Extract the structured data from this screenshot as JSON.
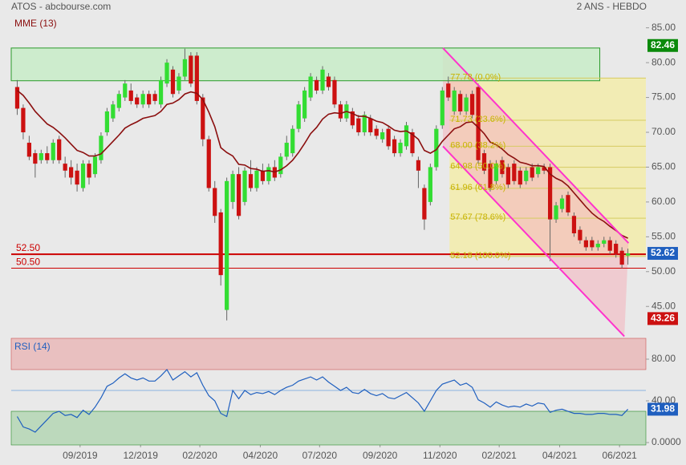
{
  "chart_data": {
    "type": "candlestick",
    "title": "ATOS - abcbourse.com",
    "subtitle": "2 ANS - HEBDO",
    "xlim": [
      -1,
      105
    ],
    "xticks": [
      {
        "value": 10.5,
        "label": "09/2019"
      },
      {
        "value": 20.6,
        "label": "12/2019"
      },
      {
        "value": 30.5,
        "label": "02/2020"
      },
      {
        "value": 40.6,
        "label": "04/2020"
      },
      {
        "value": 50.5,
        "label": "07/2020"
      },
      {
        "value": 60.6,
        "label": "09/2020"
      },
      {
        "value": 70.6,
        "label": "11/2020"
      },
      {
        "value": 80.5,
        "label": "02/2021"
      },
      {
        "value": 90.6,
        "label": "04/2021"
      },
      {
        "value": 100.6,
        "label": "06/2021"
      }
    ],
    "ylim": [
      41,
      86
    ],
    "yticks": [
      {
        "value": 85,
        "label": "85.00"
      },
      {
        "value": 80,
        "label": "80.00"
      },
      {
        "value": 75,
        "label": "75.00"
      },
      {
        "value": 70,
        "label": "70.00"
      },
      {
        "value": 65,
        "label": "65.00"
      },
      {
        "value": 60,
        "label": "60.00"
      },
      {
        "value": 55,
        "label": "55.00"
      },
      {
        "value": 50,
        "label": "50.00"
      },
      {
        "value": 45,
        "label": "45.00"
      }
    ],
    "up_color": "#33dd33",
    "down_color": "#cc1111",
    "candles": [
      [
        76.5,
        77.5,
        72.5,
        73.4
      ],
      [
        73.5,
        74,
        69,
        70
      ],
      [
        68.5,
        69.5,
        66,
        66.5
      ],
      [
        67,
        67.5,
        63.5,
        65.5
      ],
      [
        66,
        67.5,
        65.5,
        67
      ],
      [
        67,
        68,
        65.5,
        66
      ],
      [
        66,
        69,
        65.5,
        68.5
      ],
      [
        69,
        69.5,
        65.5,
        66
      ],
      [
        65.5,
        66.5,
        63.5,
        64.5
      ],
      [
        65,
        66,
        62.5,
        63.5
      ],
      [
        64.5,
        65.5,
        61.5,
        62.5
      ],
      [
        62,
        66,
        61.5,
        65.5
      ],
      [
        65.5,
        66,
        62.5,
        63.5
      ],
      [
        64,
        67,
        63.5,
        66.5
      ],
      [
        66,
        70,
        65.5,
        69.5
      ],
      [
        70,
        73.5,
        69.5,
        73
      ],
      [
        72,
        74.5,
        71.5,
        74
      ],
      [
        73.5,
        76,
        73,
        75.5
      ],
      [
        75,
        77.5,
        74.5,
        77
      ],
      [
        76,
        77,
        74,
        74.5
      ],
      [
        75,
        75.5,
        73.5,
        74
      ],
      [
        74,
        76,
        73.5,
        75.5
      ],
      [
        75.5,
        76,
        73.5,
        74
      ],
      [
        75.5,
        76,
        74,
        74.5
      ],
      [
        74,
        78,
        73.5,
        77.5
      ],
      [
        77,
        80.5,
        76.5,
        80
      ],
      [
        79,
        79.5,
        75,
        75.5
      ],
      [
        76,
        78.5,
        75.5,
        78
      ],
      [
        78,
        82,
        77.5,
        80.5
      ],
      [
        81,
        81.5,
        76.5,
        77
      ],
      [
        81,
        81.5,
        74,
        74.5
      ],
      [
        75,
        75.5,
        68,
        69
      ],
      [
        69,
        69.5,
        61.5,
        62
      ],
      [
        62,
        63,
        57,
        58
      ],
      [
        58.5,
        59,
        48,
        49.5
      ],
      [
        44.5,
        63.5,
        43,
        63
      ],
      [
        60,
        64.5,
        59,
        64
      ],
      [
        64,
        65,
        57.5,
        58
      ],
      [
        60,
        65,
        59.5,
        64.5
      ],
      [
        64,
        66,
        61.5,
        62
      ],
      [
        62,
        65,
        61.5,
        64.5
      ],
      [
        64.5,
        65.5,
        62.5,
        63
      ],
      [
        63,
        65.5,
        62.5,
        65
      ],
      [
        65,
        66,
        63,
        63.5
      ],
      [
        64,
        67,
        63.5,
        66.5
      ],
      [
        66.5,
        69.5,
        66,
        68.5
      ],
      [
        67,
        71,
        66.5,
        70.5
      ],
      [
        70.5,
        74.5,
        70,
        74
      ],
      [
        72,
        76.5,
        71.5,
        76
      ],
      [
        75,
        78.5,
        74.5,
        78
      ],
      [
        77.5,
        78,
        75.5,
        76
      ],
      [
        76,
        79.5,
        75.5,
        79
      ],
      [
        78,
        78.5,
        76,
        76.5
      ],
      [
        77.5,
        78,
        73.5,
        74
      ],
      [
        74,
        74.5,
        71.5,
        72
      ],
      [
        72,
        74.5,
        71.5,
        74
      ],
      [
        73,
        73.5,
        70.5,
        71
      ],
      [
        72,
        72.5,
        69.5,
        70
      ],
      [
        70,
        73,
        69.5,
        72.5
      ],
      [
        72,
        72.5,
        69.5,
        70
      ],
      [
        70.5,
        71,
        69,
        69.5
      ],
      [
        69,
        70.5,
        68.5,
        70
      ],
      [
        70.5,
        71,
        67.5,
        68
      ],
      [
        69,
        69.5,
        66.5,
        67
      ],
      [
        67,
        69,
        66.5,
        68.5
      ],
      [
        68,
        71.5,
        67.5,
        71
      ],
      [
        70,
        70.5,
        66.5,
        67
      ],
      [
        66,
        66.5,
        62,
        64.5
      ],
      [
        62,
        62.5,
        56,
        57.5
      ],
      [
        60,
        65.5,
        59.5,
        65
      ],
      [
        65,
        71,
        64.5,
        70.5
      ],
      [
        71,
        76.5,
        70.5,
        76
      ],
      [
        77,
        78,
        74.5,
        75
      ],
      [
        73,
        76.5,
        72.5,
        76
      ],
      [
        75.5,
        76,
        72.5,
        73
      ],
      [
        73,
        75.5,
        72.5,
        75
      ],
      [
        75.5,
        76,
        72,
        72.5
      ],
      [
        76.5,
        77,
        65.5,
        66
      ],
      [
        67,
        67.5,
        64,
        64.5
      ],
      [
        65.5,
        66,
        61.5,
        62
      ],
      [
        63,
        66,
        62.5,
        65.5
      ],
      [
        66,
        66.5,
        63.5,
        64
      ],
      [
        65,
        65.5,
        62,
        62.5
      ],
      [
        65.5,
        66,
        62.5,
        63
      ],
      [
        64.5,
        65,
        62,
        62.5
      ],
      [
        63,
        65,
        62.5,
        64.5
      ],
      [
        65,
        65.5,
        63,
        63.5
      ],
      [
        64,
        65.5,
        63.5,
        65
      ],
      [
        65,
        65.5,
        64,
        64.5
      ],
      [
        65,
        65.5,
        51.5,
        57.5
      ],
      [
        57.5,
        60,
        57,
        59.5
      ],
      [
        59,
        61,
        58.5,
        60.5
      ],
      [
        61,
        61.5,
        58,
        58.5
      ],
      [
        58,
        58.5,
        55,
        55.5
      ],
      [
        56,
        56.5,
        54,
        54.5
      ],
      [
        54.5,
        55,
        53,
        53.5
      ],
      [
        54.5,
        55,
        53,
        53.5
      ],
      [
        53.5,
        54.5,
        53,
        54
      ],
      [
        54,
        55,
        53.5,
        54.5
      ],
      [
        54.5,
        55,
        52.5,
        53
      ],
      [
        54,
        54.5,
        52,
        52.5
      ],
      [
        53,
        53.5,
        50.5,
        51
      ],
      [
        52.3,
        53.3,
        51,
        52.62
      ]
    ],
    "ema": {
      "name": "MME (13)",
      "color": "#8b0f0f",
      "values": [
        76,
        75.3,
        74.2,
        73,
        72.1,
        71.2,
        70.7,
        70,
        69.2,
        68.3,
        67.4,
        67.1,
        66.6,
        66.6,
        66.9,
        67.8,
        68.7,
        69.6,
        70.6,
        71.1,
        71.5,
        72,
        72.2,
        72.4,
        73,
        74,
        74.2,
        74.7,
        75.5,
        75.8,
        75.6,
        74.7,
        72.9,
        70.8,
        67.8,
        67.1,
        66.6,
        65.4,
        65.3,
        64.8,
        64.7,
        64.4,
        64.5,
        64.3,
        64.6,
        65.2,
        66,
        67.1,
        68.4,
        69.8,
        70.7,
        71.9,
        72.6,
        72.8,
        72.7,
        73,
        72.7,
        72.3,
        72.3,
        72,
        71.6,
        71.4,
        70.9,
        70.3,
        70.1,
        70.2,
        69.7,
        69,
        67.4,
        67,
        67.5,
        68.7,
        69.6,
        70.5,
        70.8,
        71.4,
        71.5,
        70.7,
        69.8,
        68.6,
        68.2,
        67.6,
        66.8,
        66.3,
        65.7,
        65.5,
        65.2,
        65.2,
        65.1,
        64,
        63.4,
        63,
        62.3,
        61.3,
        60.3,
        59.3,
        58.4,
        57.7,
        57.2,
        56.5,
        55.9,
        55.2,
        54.8
      ]
    },
    "zone": {
      "x": [
        -1,
        97.3
      ],
      "y": [
        77.4,
        82.1
      ],
      "fill": "#c6ecc6",
      "stroke": "#2a9a2a"
    },
    "fib": {
      "x": [
        72.2,
        105
      ],
      "fill": "#f2ecb4",
      "line_color": "#d6cb62",
      "text_color": "#c8b400",
      "levels": [
        {
          "value": 77.78,
          "label": "77.78 (0.0%)"
        },
        {
          "value": 71.73,
          "label": "71.73 (23.6%)"
        },
        {
          "value": 68.0,
          "label": "68.00 (38.2%)"
        },
        {
          "value": 64.98,
          "label": "64.98 (50.0%)"
        },
        {
          "value": 61.96,
          "label": "61.96 (61.8%)"
        },
        {
          "value": 57.67,
          "label": "57.67 (78.6%)"
        },
        {
          "value": 52.18,
          "label": "52.18 (100.0%)"
        }
      ]
    },
    "channel": {
      "color": "#ff33cc",
      "fill": "#f4b8c0",
      "lines": [
        {
          "x": [
            71.1,
            102.1
          ],
          "y": [
            82.1,
            54.1
          ]
        },
        {
          "x": [
            71.1,
            101.4
          ],
          "y": [
            68,
            40.7
          ]
        }
      ]
    },
    "hlines": {
      "color": "#cc0000",
      "lines": [
        {
          "value": 52.5,
          "label": "52.50",
          "width": 2
        },
        {
          "value": 50.5,
          "label": "50.50",
          "width": 1
        }
      ]
    },
    "badges": [
      {
        "value": 82.46,
        "color": "#0a8a0a"
      },
      {
        "value": 52.62,
        "color": "#1f5fbf"
      },
      {
        "value": 43.26,
        "color": "#cc1111"
      }
    ],
    "rsi": {
      "name": "RSI (14)",
      "color": "#1f5fbf",
      "ylim": [
        -2.3,
        100
      ],
      "yticks": [
        {
          "value": 80,
          "label": "80.00"
        },
        {
          "value": 40,
          "label": "40.00"
        },
        {
          "value": 0,
          "label": "0.0000"
        }
      ],
      "bands": [
        {
          "range": [
            70,
            100
          ],
          "fill": "#e9c0c0",
          "stroke": "#cc5555"
        },
        {
          "range": [
            -2.3,
            30
          ],
          "fill": "#bcd9bc",
          "stroke": "#2a8a2a"
        }
      ],
      "midline": 50,
      "badge": {
        "value": 31.98,
        "color": "#1f5fbf"
      },
      "values": [
        25,
        15,
        13,
        10,
        16,
        22,
        28,
        30,
        26,
        27,
        24,
        31,
        27,
        34,
        43,
        54,
        57,
        62,
        66,
        62,
        60,
        62,
        59,
        59,
        64,
        70,
        60,
        64,
        68,
        63,
        67,
        55,
        45,
        40,
        28,
        25,
        50,
        42,
        50,
        46,
        48,
        47,
        49,
        46,
        50,
        53,
        55,
        59,
        61,
        63,
        60,
        63,
        58,
        54,
        50,
        53,
        48,
        47,
        51,
        47,
        45,
        47,
        43,
        42,
        45,
        48,
        43,
        38,
        30,
        40,
        50,
        56,
        58,
        60,
        55,
        57,
        53,
        41,
        38,
        34,
        39,
        36,
        34,
        35,
        34,
        37,
        35,
        38,
        37,
        29,
        31,
        32,
        30,
        28,
        28,
        27,
        27,
        28,
        28,
        27,
        27,
        26,
        31.98
      ]
    }
  }
}
